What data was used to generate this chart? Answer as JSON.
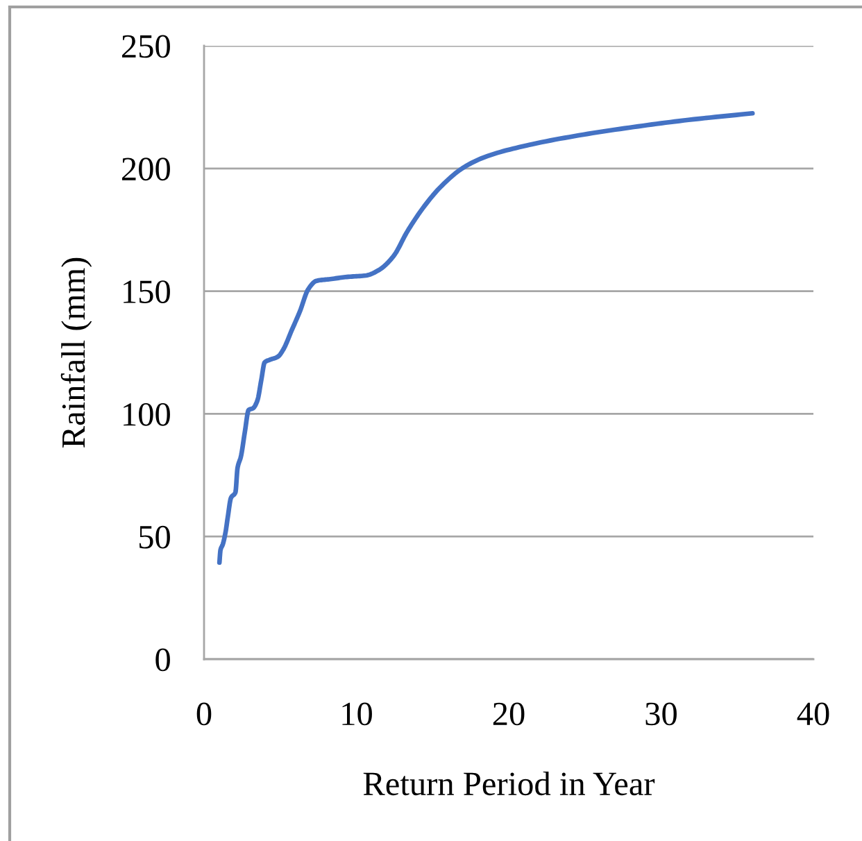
{
  "chart_data": {
    "type": "line",
    "xlabel": "Return Period in Year",
    "ylabel": "Rainfall (mm)",
    "series": [
      {
        "color": "#4472c4",
        "x": [
          1.01,
          1.08,
          1.23,
          1.41,
          1.56,
          1.77,
          2.06,
          2.2,
          2.42,
          2.68,
          2.93,
          3.22,
          3.5,
          3.76,
          3.98,
          4.3,
          4.85,
          5.2,
          5.75,
          6.3,
          6.84,
          7.38,
          8.28,
          9.37,
          10.63,
          11.5,
          12.44,
          13.35,
          14.43,
          15.5,
          16.96,
          18.4,
          20.9,
          24.6,
          28.2,
          31.8,
          36.0
        ],
        "values": [
          39.4,
          44.5,
          46.8,
          51.7,
          58,
          65.8,
          68,
          78,
          82.6,
          92.7,
          101.6,
          102.3,
          105.4,
          113.9,
          121,
          122,
          123.3,
          126.2,
          134,
          141.9,
          150.8,
          154.2,
          154.9,
          155.8,
          156.4,
          158.7,
          164.3,
          174.4,
          184.4,
          192.3,
          200.1,
          204.6,
          209,
          213.5,
          216.9,
          219.8,
          222.5
        ]
      }
    ],
    "xlim": [
      0,
      40
    ],
    "ylim": [
      0,
      250
    ],
    "xticks": [
      0,
      10,
      20,
      30,
      40
    ],
    "yticks": [
      0,
      50,
      100,
      150,
      200,
      250
    ],
    "grid": "y",
    "line_style": "solid"
  }
}
